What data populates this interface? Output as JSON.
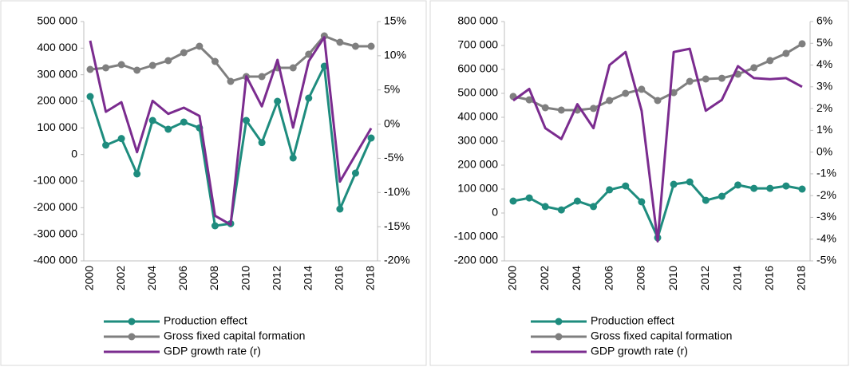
{
  "chart_data": [
    {
      "type": "line",
      "categories": [
        2000,
        null,
        2002,
        null,
        2004,
        null,
        2006,
        null,
        2008,
        null,
        2010,
        null,
        2012,
        null,
        2014,
        null,
        2016,
        null,
        2018
      ],
      "legend": "bottom",
      "ylim": [
        -400000,
        500000
      ],
      "yticks": [
        {
          "value": -400000,
          "label": "-400 000"
        },
        {
          "value": -300000,
          "label": "-300 000"
        },
        {
          "value": -200000,
          "label": "-200 000"
        },
        {
          "value": -100000,
          "label": "-100 000"
        },
        0,
        {
          "value": 100000,
          "label": "100 000"
        },
        {
          "value": 200000,
          "label": "200 000"
        },
        {
          "value": 300000,
          "label": "300 000"
        },
        {
          "value": 400000,
          "label": "400 000"
        },
        {
          "value": 500000,
          "label": "500 000"
        }
      ],
      "y2lim": [
        -20,
        15
      ],
      "y2ticks": [
        {
          "value": -20,
          "label": "-20%"
        },
        {
          "value": -15,
          "label": "-15%"
        },
        {
          "value": -10,
          "label": "-10%"
        },
        {
          "value": -5,
          "label": "-5%"
        },
        {
          "value": 0,
          "label": "0%"
        },
        {
          "value": 5,
          "label": "5%"
        },
        {
          "value": 10,
          "label": "10%"
        },
        {
          "value": 15,
          "label": "15%"
        }
      ],
      "series": [
        {
          "name": "Production effect",
          "color": "#1e8c7e",
          "markers": true,
          "values": [
            218000,
            35000,
            60000,
            -73000,
            128000,
            95000,
            122000,
            100000,
            -268000,
            -260000,
            128000,
            45000,
            200000,
            -13000,
            212000,
            332000,
            -205000,
            -70000,
            62000
          ]
        },
        {
          "name": "Gross fixed capital formation",
          "color": "#7f7f7f",
          "markers": true,
          "values": [
            320000,
            326000,
            338000,
            317000,
            335000,
            353000,
            383000,
            407000,
            350000,
            275000,
            293000,
            293000,
            326000,
            326000,
            377000,
            446000,
            422000,
            407000,
            407000
          ]
        },
        {
          "name": "GDP growth rate (r)",
          "color": "#7b2c8f",
          "markers": false,
          "axis": "y2",
          "values": [
            12.2,
            1.8,
            3.2,
            -4.1,
            3.4,
            1.5,
            2.4,
            1.2,
            -13.4,
            -14.7,
            7.0,
            2.6,
            9.4,
            -0.5,
            9.2,
            12.7,
            -8.4,
            -4.5,
            -0.6
          ]
        }
      ]
    },
    {
      "type": "line",
      "categories": [
        2000,
        null,
        2002,
        null,
        2004,
        null,
        2006,
        null,
        2008,
        null,
        2010,
        null,
        2012,
        null,
        2014,
        null,
        2016,
        null,
        2018
      ],
      "legend": "bottom",
      "ylim": [
        -200000,
        800000
      ],
      "yticks": [
        {
          "value": -200000,
          "label": "-200 000"
        },
        {
          "value": -100000,
          "label": "-100 000"
        },
        0,
        {
          "value": 100000,
          "label": "100 000"
        },
        {
          "value": 200000,
          "label": "200 000"
        },
        {
          "value": 300000,
          "label": "300 000"
        },
        {
          "value": 400000,
          "label": "400 000"
        },
        {
          "value": 500000,
          "label": "500 000"
        },
        {
          "value": 600000,
          "label": "600 000"
        },
        {
          "value": 700000,
          "label": "700 000"
        },
        {
          "value": 800000,
          "label": "800 000"
        }
      ],
      "y2lim": [
        -5,
        6
      ],
      "y2ticks": [
        {
          "value": -5,
          "label": "-5%"
        },
        {
          "value": -4,
          "label": "-4%"
        },
        {
          "value": -3,
          "label": "-3%"
        },
        {
          "value": -2,
          "label": "-2%"
        },
        {
          "value": -1,
          "label": "-1%"
        },
        {
          "value": 0,
          "label": "0%"
        },
        {
          "value": 1,
          "label": "1%"
        },
        {
          "value": 2,
          "label": "2%"
        },
        {
          "value": 3,
          "label": "3%"
        },
        {
          "value": 4,
          "label": "4%"
        },
        {
          "value": 5,
          "label": "5%"
        },
        {
          "value": 6,
          "label": "6%"
        }
      ],
      "series": [
        {
          "name": "Production effect",
          "color": "#1e8c7e",
          "markers": true,
          "values": [
            50000,
            63000,
            27000,
            13000,
            50000,
            27000,
            97000,
            113000,
            47000,
            -103000,
            120000,
            130000,
            53000,
            70000,
            117000,
            103000,
            103000,
            113000,
            100000
          ]
        },
        {
          "name": "Gross fixed capital formation",
          "color": "#7f7f7f",
          "markers": true,
          "values": [
            487000,
            473000,
            440000,
            430000,
            430000,
            437000,
            470000,
            500000,
            517000,
            470000,
            503000,
            550000,
            560000,
            563000,
            580000,
            607000,
            637000,
            667000,
            707000
          ]
        },
        {
          "name": "GDP growth rate (r)",
          "color": "#7b2c8f",
          "markers": false,
          "axis": "y2",
          "values": [
            2.37,
            2.9,
            1.1,
            0.6,
            2.2,
            1.1,
            4.0,
            4.6,
            1.9,
            -4.1,
            4.6,
            4.75,
            1.9,
            2.4,
            3.95,
            3.4,
            3.35,
            3.4,
            3.0
          ]
        }
      ]
    }
  ]
}
